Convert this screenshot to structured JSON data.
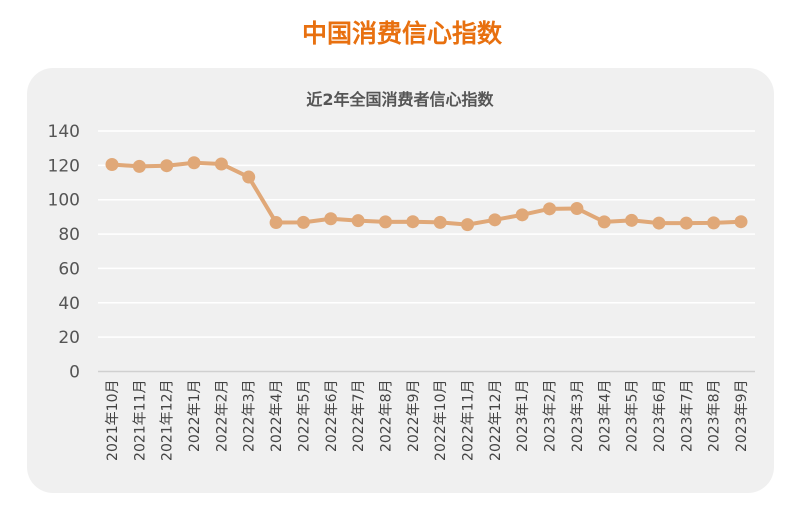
{
  "page_title": "中国消费信心指数",
  "colors": {
    "title": "#e8700f",
    "line": "#e0a878",
    "card": "#f0f0f0"
  },
  "chart_data": {
    "type": "line",
    "title": "近2年全国消费者信心指数",
    "xlabel": "",
    "ylabel": "",
    "ylim": [
      0,
      140
    ],
    "yticks": [
      0,
      20,
      40,
      60,
      80,
      100,
      120,
      140
    ],
    "grid": true,
    "categories": [
      "2021年10月",
      "2021年11月",
      "2021年12月",
      "2022年1月",
      "2022年2月",
      "2022年3月",
      "2022年4月",
      "2022年5月",
      "2022年6月",
      "2022年7月",
      "2022年8月",
      "2022年9月",
      "2022年10月",
      "2022年11月",
      "2022年12月",
      "2023年1月",
      "2023年2月",
      "2023年3月",
      "2023年4月",
      "2023年5月",
      "2023年6月",
      "2023年7月",
      "2023年8月",
      "2023年9月"
    ],
    "series": [
      {
        "name": "消费者信心指数",
        "values": [
          120.5,
          119.4,
          119.8,
          121.5,
          120.8,
          113.2,
          86.7,
          86.8,
          88.9,
          87.8,
          87.1,
          87.2,
          86.8,
          85.5,
          88.3,
          91.2,
          94.7,
          94.9,
          87.1,
          88.0,
          86.4,
          86.4,
          86.5,
          87.2
        ]
      }
    ]
  }
}
